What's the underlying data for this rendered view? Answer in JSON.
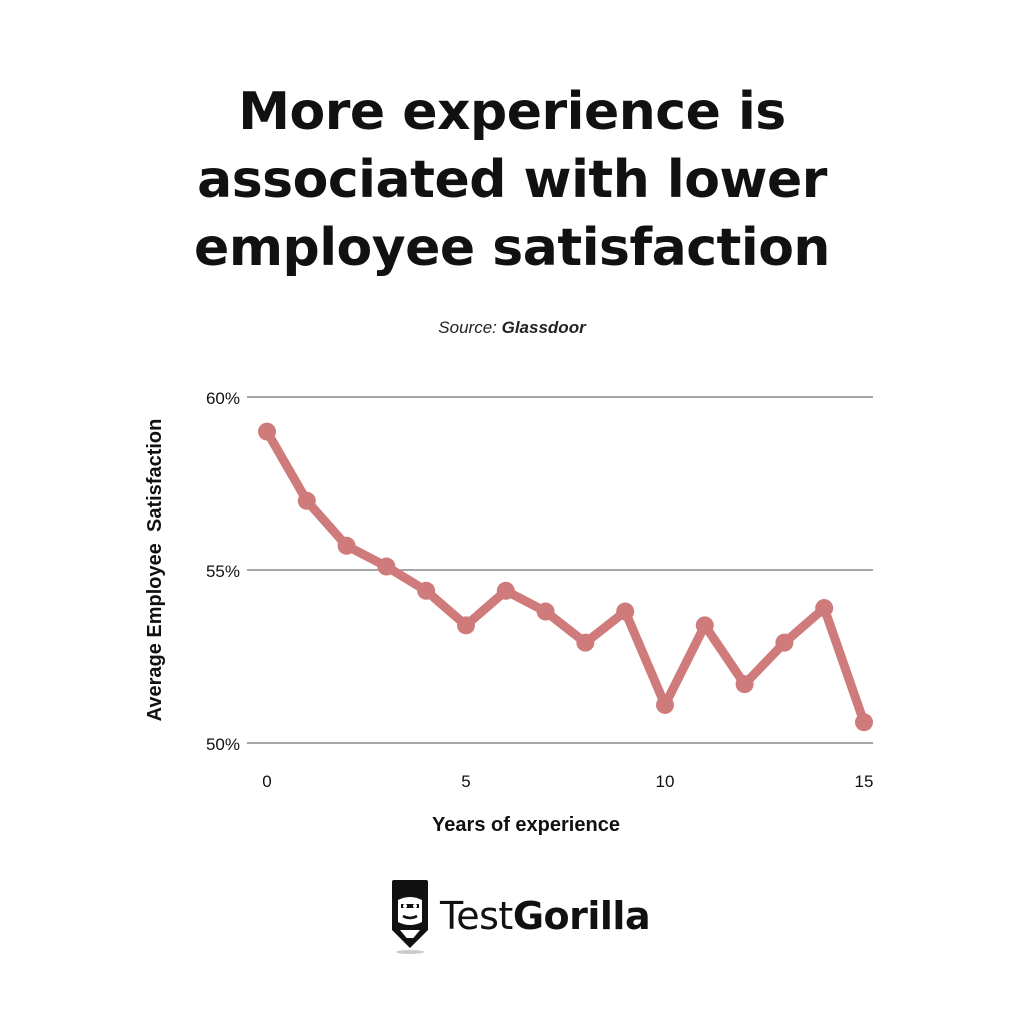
{
  "header": {
    "title_lines": [
      "More experience is",
      "associated with lower",
      "employee satisfaction"
    ],
    "source_prefix": "Source:",
    "source_name": "Glassdoor"
  },
  "chart_data": {
    "type": "line",
    "title": "More experience is associated with lower employee satisfaction",
    "xlabel": "Years of experience",
    "ylabel": "Average Employee  Satisfaction",
    "xlim": [
      0,
      15
    ],
    "ylim": [
      50,
      60
    ],
    "x_ticks": [
      0,
      5,
      10,
      15
    ],
    "x_tick_labels": [
      "0",
      "5",
      "10",
      "15"
    ],
    "y_ticks": [
      50,
      55,
      60
    ],
    "y_tick_labels": [
      "50%",
      "55%",
      "60%"
    ],
    "grid": true,
    "series": [
      {
        "name": "Average Employee Satisfaction",
        "color": "#cf7b7b",
        "x": [
          0,
          1,
          2,
          3,
          4,
          5,
          6,
          7,
          8,
          9,
          10,
          11,
          12,
          13,
          14,
          15
        ],
        "values": [
          59.0,
          57.0,
          55.7,
          55.1,
          54.4,
          53.4,
          54.4,
          53.8,
          52.9,
          53.8,
          51.1,
          53.4,
          51.7,
          52.9,
          53.9,
          50.6
        ]
      }
    ]
  },
  "logo": {
    "brand_light": "Test",
    "brand_bold": "Gorilla"
  }
}
